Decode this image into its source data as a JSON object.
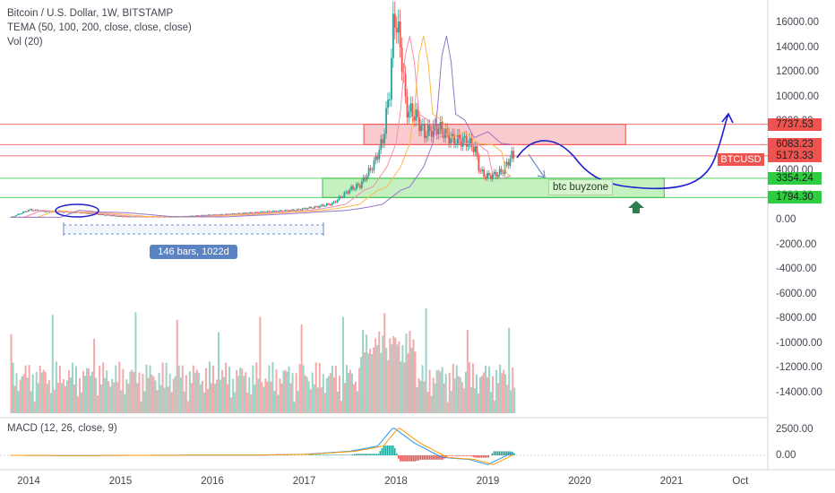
{
  "header": {
    "title": "Bitcoin / U.S. Dollar, 1W, BITSTAMP",
    "indicator_tema": "TEMA (50, 100, 200, close, close, close)",
    "indicator_vol": "Vol (20)",
    "indicator_macd": "MACD (12, 26, close, 9)"
  },
  "price_axis": {
    "ticks": [
      "16000.00",
      "14000.00",
      "12000.00",
      "10000.00",
      "8000.00",
      "6000.00",
      "4000.00",
      "2000.00",
      "0.00",
      "-2000.00",
      "-4000.00",
      "-6000.00",
      "-8000.00",
      "-10000.00",
      "-12000.00",
      "-14000.00"
    ],
    "tick_values": [
      16000,
      14000,
      12000,
      10000,
      8000,
      6000,
      4000,
      2000,
      0,
      -2000,
      -4000,
      -6000,
      -8000,
      -10000,
      -12000,
      -14000
    ]
  },
  "macd_axis": {
    "ticks": [
      "2500.00",
      "0.00"
    ],
    "tick_values": [
      2500,
      0
    ]
  },
  "time_axis": {
    "labels": [
      "2014",
      "2015",
      "2016",
      "2017",
      "2018",
      "2019",
      "2020",
      "2021",
      "Oct"
    ],
    "years": [
      2014,
      2015,
      2016,
      2017,
      2018,
      2019,
      2020,
      2021,
      2021.75
    ]
  },
  "price_labels": [
    {
      "value": "7737.53",
      "color": "#ef5350",
      "price": 7737.53
    },
    {
      "value": "6083.23",
      "color": "#ef5350",
      "price": 6083.23
    },
    {
      "value": "5173.33",
      "color": "#ef5350",
      "price": 5173.33
    },
    {
      "value": "3354.24",
      "color": "#2ecc40",
      "price": 3354.24
    },
    {
      "value": "1794.30",
      "color": "#2ecc40",
      "price": 1794.3
    }
  ],
  "symbol_tag": "BTCUSD",
  "annotations": {
    "range_label": "146 bars, 1022d",
    "buyzone_label": "btc buyzone"
  },
  "zones": {
    "resistance": {
      "from": 6083.23,
      "to": 7737.53,
      "start": 2017.65,
      "end": 2020.5,
      "color": "#f7a8ad"
    },
    "support": {
      "from": 1794.3,
      "to": 3354.24,
      "start": 2017.2,
      "end": 2020.92,
      "color": "#9fe896"
    }
  },
  "colors": {
    "up": "#26a69a",
    "down": "#ef5350",
    "drawing": "#1f1fcf",
    "arrow": "#2e7d4f"
  },
  "chart_data": {
    "type": "candlestick",
    "title": "Bitcoin / U.S. Dollar, 1W, BITSTAMP",
    "x": [
      2013.8,
      2014.0,
      2014.2,
      2014.5,
      2014.8,
      2015.0,
      2015.3,
      2015.6,
      2015.9,
      2016.1,
      2016.4,
      2016.6,
      2016.9,
      2017.1,
      2017.3,
      2017.5,
      2017.6,
      2017.75,
      2017.85,
      2017.93,
      2017.97,
      2018.05,
      2018.1,
      2018.2,
      2018.3,
      2018.45,
      2018.6,
      2018.75,
      2018.85,
      2018.9,
      2018.97,
      2019.05,
      2019.15,
      2019.25
    ],
    "close": [
      200,
      800,
      650,
      600,
      400,
      260,
      240,
      230,
      360,
      420,
      550,
      650,
      780,
      1000,
      1300,
      2500,
      2800,
      4500,
      6500,
      11000,
      17000,
      13500,
      9000,
      8500,
      7000,
      7500,
      6500,
      6400,
      5800,
      4000,
      3500,
      3600,
      3900,
      5173
    ],
    "ylim": [
      -15000,
      17500
    ],
    "macd": {
      "x": [
        2013.8,
        2014.5,
        2015.5,
        2016.5,
        2017.0,
        2017.5,
        2017.8,
        2017.97,
        2018.2,
        2018.5,
        2018.8,
        2019.0,
        2019.25
      ],
      "values": [
        0,
        -20,
        10,
        30,
        100,
        400,
        900,
        2700,
        1200,
        -200,
        -400,
        -900,
        200
      ]
    }
  }
}
